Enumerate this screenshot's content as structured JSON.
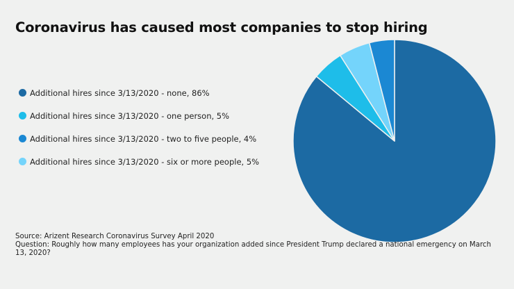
{
  "chart_data": {
    "type": "pie",
    "title": "Coronavirus has caused most companies to stop hiring",
    "slices": [
      {
        "label": "Additional hires since 3/13/2020 - none, 86%",
        "value": 86,
        "color": "#1c6aa3"
      },
      {
        "label": "Additional hires since 3/13/2020 - one person, 5%",
        "value": 5,
        "color": "#1ebde9"
      },
      {
        "label": "Additional hires since 3/13/2020 - six or more people, 5%",
        "value": 5,
        "color": "#74d4fb"
      },
      {
        "label": "Additional hires since 3/13/2020 - two to five people, 4%",
        "value": 4,
        "color": "#1b88d3"
      }
    ],
    "legend": [
      {
        "label": "Additional hires since 3/13/2020 - none, 86%",
        "color": "#1c6aa3"
      },
      {
        "label": "Additional hires since 3/13/2020 - one person, 5%",
        "color": "#1ebde9"
      },
      {
        "label": "Additional hires since 3/13/2020 - two to five people, 4%",
        "color": "#1b88d3"
      },
      {
        "label": "Additional hires since 3/13/2020 - six or more people, 5%",
        "color": "#74d4fb"
      }
    ],
    "legend_position": "left"
  },
  "footer": {
    "source": "Source: Arizent Research Coronavirus Survey April 2020",
    "question": "Question: Roughly how many employees has your organization added since President Trump declared a national emergency on March 13, 2020?"
  }
}
